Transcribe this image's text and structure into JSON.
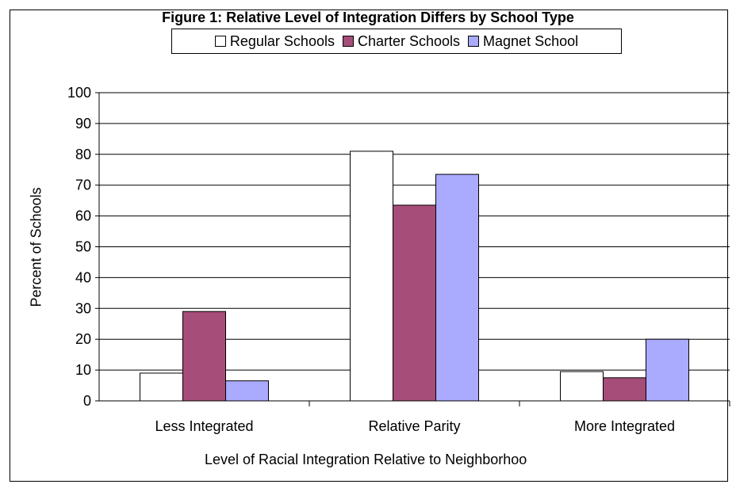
{
  "chart_data": {
    "type": "bar",
    "title": "Figure 1: Relative Level of Integration Differs by School Type",
    "xlabel": "Level of Racial Integration Relative to Neighborhoo",
    "ylabel": "Percent of Schools",
    "ylim": [
      0,
      100
    ],
    "yticks": [
      "0",
      "10",
      "20",
      "30",
      "40",
      "50",
      "60",
      "70",
      "80",
      "90",
      "100"
    ],
    "categories": [
      "Less Integrated",
      "Relative Parity",
      "More Integrated"
    ],
    "series": [
      {
        "name": "Regular Schools",
        "color": "#ffffff",
        "values": [
          9,
          81,
          9.5
        ]
      },
      {
        "name": "Charter Schools",
        "color": "#a64d79",
        "values": [
          29,
          63.5,
          7.5
        ]
      },
      {
        "name": "Magnet School",
        "color": "#aaaaff",
        "values": [
          6.5,
          73.5,
          20
        ]
      }
    ],
    "grid": true,
    "legend_position": "top"
  }
}
